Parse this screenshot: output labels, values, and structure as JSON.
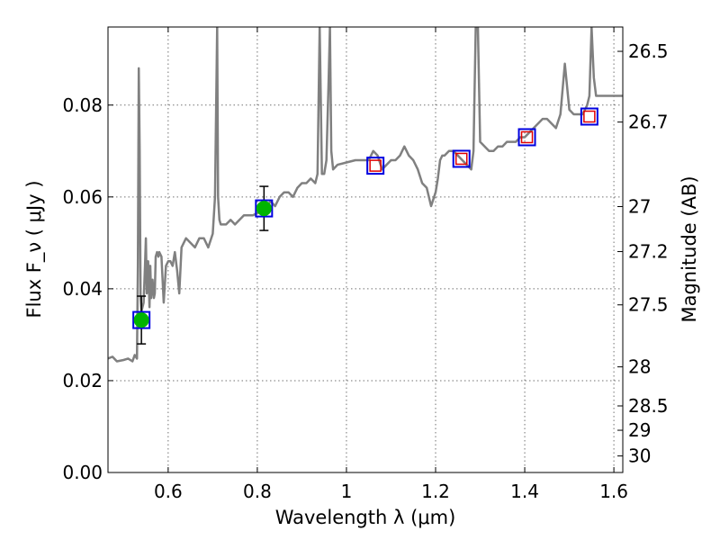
{
  "chart_data": {
    "type": "line",
    "title": "",
    "xlabel": "Wavelength  λ (μm)",
    "ylabel": "Flux  F_ν  ( μJy )",
    "ylabel_right": "Magnitude (AB)",
    "xlim": [
      0.465,
      1.62
    ],
    "ylim": [
      0.0,
      0.097
    ],
    "grid": true,
    "x_ticks": [
      0.6,
      0.8,
      1.0,
      1.2,
      1.4,
      1.6
    ],
    "x_tick_labels": [
      "0.6",
      "0.8",
      "1",
      "1.2",
      "1.4",
      "1.6"
    ],
    "y_ticks": [
      0.0,
      0.02,
      0.04,
      0.06,
      0.08
    ],
    "y_tick_labels": [
      "0.00",
      "0.02",
      "0.04",
      "0.06",
      "0.08"
    ],
    "right_axis_ticks": [
      {
        "label": "26.5",
        "flux": 0.0917
      },
      {
        "label": "26.7",
        "flux": 0.0763
      },
      {
        "label": "27",
        "flux": 0.0579
      },
      {
        "label": "27.2",
        "flux": 0.0481
      },
      {
        "label": "27.5",
        "flux": 0.0365
      },
      {
        "label": "28",
        "flux": 0.023
      },
      {
        "label": "28.5",
        "flux": 0.0145
      },
      {
        "label": "29",
        "flux": 0.0092
      },
      {
        "label": "30",
        "flux": 0.0036
      }
    ],
    "colors": {
      "model": "#808080",
      "observed": "#00b400",
      "model_phot": "#0000e0",
      "predicted": "#e00000",
      "errorbar": "#000000"
    },
    "series": [
      {
        "name": "model spectrum",
        "kind": "line",
        "x": [
          0.465,
          0.475,
          0.485,
          0.5,
          0.51,
          0.52,
          0.525,
          0.53,
          0.532,
          0.534,
          0.536,
          0.538,
          0.54,
          0.545,
          0.548,
          0.55,
          0.552,
          0.555,
          0.558,
          0.56,
          0.562,
          0.565,
          0.568,
          0.57,
          0.572,
          0.575,
          0.578,
          0.58,
          0.585,
          0.59,
          0.595,
          0.6,
          0.605,
          0.61,
          0.615,
          0.62,
          0.625,
          0.63,
          0.64,
          0.65,
          0.66,
          0.67,
          0.68,
          0.69,
          0.7,
          0.705,
          0.71,
          0.712,
          0.715,
          0.718,
          0.72,
          0.73,
          0.74,
          0.75,
          0.76,
          0.77,
          0.78,
          0.79,
          0.8,
          0.81,
          0.82,
          0.83,
          0.84,
          0.85,
          0.86,
          0.87,
          0.88,
          0.89,
          0.9,
          0.91,
          0.92,
          0.93,
          0.935,
          0.94,
          0.945,
          0.95,
          0.955,
          0.96,
          0.963,
          0.966,
          0.97,
          0.98,
          1.0,
          1.02,
          1.04,
          1.05,
          1.06,
          1.07,
          1.08,
          1.09,
          1.1,
          1.11,
          1.12,
          1.13,
          1.14,
          1.15,
          1.16,
          1.17,
          1.18,
          1.19,
          1.2,
          1.205,
          1.21,
          1.215,
          1.22,
          1.23,
          1.24,
          1.25,
          1.26,
          1.27,
          1.28,
          1.285,
          1.29,
          1.295,
          1.3,
          1.31,
          1.32,
          1.33,
          1.34,
          1.35,
          1.36,
          1.37,
          1.38,
          1.39,
          1.4,
          1.41,
          1.42,
          1.43,
          1.44,
          1.45,
          1.46,
          1.47,
          1.48,
          1.49,
          1.5,
          1.51,
          1.52,
          1.53,
          1.54,
          1.545,
          1.55,
          1.555,
          1.56,
          1.57,
          1.58,
          1.59,
          1.6,
          1.61,
          1.62
        ],
        "y": [
          0.0248,
          0.0252,
          0.0242,
          0.0245,
          0.0248,
          0.0242,
          0.0256,
          0.0248,
          0.045,
          0.088,
          0.07,
          0.038,
          0.035,
          0.037,
          0.045,
          0.051,
          0.039,
          0.046,
          0.036,
          0.045,
          0.038,
          0.042,
          0.038,
          0.039,
          0.047,
          0.048,
          0.047,
          0.048,
          0.047,
          0.037,
          0.045,
          0.046,
          0.046,
          0.045,
          0.048,
          0.044,
          0.039,
          0.049,
          0.051,
          0.05,
          0.049,
          0.051,
          0.051,
          0.049,
          0.052,
          0.06,
          0.097,
          0.06,
          0.055,
          0.054,
          0.054,
          0.054,
          0.055,
          0.054,
          0.055,
          0.056,
          0.056,
          0.056,
          0.0565,
          0.057,
          0.058,
          0.059,
          0.058,
          0.06,
          0.061,
          0.061,
          0.06,
          0.062,
          0.063,
          0.063,
          0.064,
          0.063,
          0.065,
          0.097,
          0.065,
          0.065,
          0.068,
          0.085,
          0.097,
          0.07,
          0.066,
          0.067,
          0.0675,
          0.068,
          0.068,
          0.068,
          0.07,
          0.069,
          0.066,
          0.067,
          0.068,
          0.068,
          0.069,
          0.071,
          0.069,
          0.068,
          0.066,
          0.063,
          0.062,
          0.058,
          0.061,
          0.064,
          0.068,
          0.069,
          0.069,
          0.07,
          0.07,
          0.069,
          0.068,
          0.067,
          0.066,
          0.07,
          0.097,
          0.097,
          0.072,
          0.071,
          0.07,
          0.07,
          0.071,
          0.071,
          0.072,
          0.072,
          0.072,
          0.073,
          0.073,
          0.074,
          0.075,
          0.076,
          0.077,
          0.077,
          0.076,
          0.075,
          0.078,
          0.089,
          0.079,
          0.078,
          0.078,
          0.078,
          0.08,
          0.082,
          0.097,
          0.086,
          0.082,
          0.082,
          0.082,
          0.082,
          0.082,
          0.082,
          0.082
        ]
      },
      {
        "name": "observed photometry",
        "kind": "points",
        "x": [
          0.54,
          0.815
        ],
        "y": [
          0.0332,
          0.0575
        ],
        "yerr": [
          0.0052,
          0.0048
        ]
      },
      {
        "name": "model photometry",
        "kind": "points",
        "x": [
          0.54,
          0.815,
          1.065,
          1.258,
          1.405,
          1.545
        ],
        "y": [
          0.0332,
          0.0575,
          0.0668,
          0.0683,
          0.073,
          0.0775
        ]
      },
      {
        "name": "predicted photometry",
        "kind": "points",
        "x": [
          1.065,
          1.258,
          1.405,
          1.545
        ],
        "y": [
          0.0668,
          0.0683,
          0.073,
          0.0775
        ]
      }
    ]
  }
}
